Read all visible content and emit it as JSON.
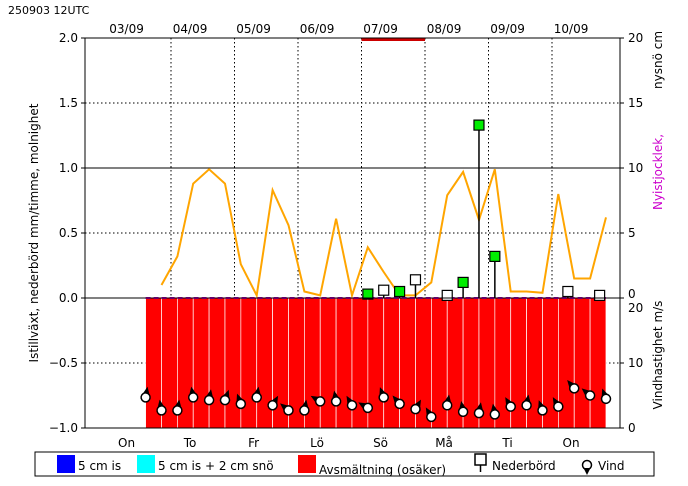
{
  "header": {
    "run_label": "250903 12UTC"
  },
  "chart_data": {
    "type": "composite",
    "top_dates": [
      "03/09",
      "04/09",
      "05/09",
      "06/09",
      "07/09",
      "08/09",
      "09/09",
      "10/09"
    ],
    "days": [
      "On",
      "To",
      "Fr",
      "Lö",
      "Sö",
      "Må",
      "Ti",
      "On"
    ],
    "ylabel_left": "Istillväxt, nederbörd mm/timme, molnighet",
    "ylim_left": [
      -1.0,
      2.0
    ],
    "yticks_left": [
      "−1.0",
      "−0.5",
      "0.0",
      "0.5",
      "1.0",
      "1.5",
      "2.0"
    ],
    "ylabel_right_top_1": "nysnö cm",
    "ylabel_right_top_2": "Nyistjocklek,",
    "yticks_right_top": [
      "0",
      "5",
      "10",
      "15",
      "20"
    ],
    "ylabel_right_bottom": "Vindhastighet m/s",
    "yticks_right_bottom": [
      "0",
      "10",
      "20"
    ],
    "cloudiness": {
      "color": "#ffa500",
      "x": [
        0.85,
        1.1,
        1.35,
        1.6,
        1.85,
        2.1,
        2.35,
        2.6,
        2.85,
        3.1,
        3.35,
        3.6,
        3.85,
        4.1,
        4.35,
        4.6,
        4.85,
        5.1,
        5.35,
        5.6,
        5.85,
        6.1,
        6.35,
        6.6,
        6.85,
        7.1,
        7.35,
        7.6,
        7.85
      ],
      "y": [
        0.1,
        0.32,
        0.88,
        0.99,
        0.88,
        0.26,
        0.02,
        0.83,
        0.56,
        0.05,
        0.02,
        0.61,
        0.02,
        0.39,
        0.2,
        0.02,
        0.02,
        0.12,
        0.79,
        0.97,
        0.6,
        0.99,
        0.05,
        0.05,
        0.04,
        0.8,
        0.15,
        0.15,
        0.62
      ]
    },
    "precipitation": {
      "x": [
        4.1,
        4.35,
        4.6,
        4.85,
        5.35,
        5.6,
        5.85,
        6.1,
        7.25,
        7.75
      ],
      "y": [
        0.03,
        0.06,
        0.05,
        0.14,
        0.02,
        0.12,
        1.33,
        0.32,
        0.05,
        0.02
      ],
      "fill": [
        "#00ee00",
        "#ffffff",
        "#00ee00",
        "#ffffff",
        "#ffffff",
        "#00ee00",
        "#00ee00",
        "#00ee00",
        "#ffffff",
        "#ffffff"
      ]
    },
    "melt": {
      "color": "#ff0000",
      "x_start": 0.6,
      "x_end": 7.85,
      "y_bottom": -1.0
    },
    "top_marker": {
      "color": "#cc0000",
      "x_start": 4.0,
      "x_end": 5.0
    },
    "wind": {
      "x": [
        0.6,
        0.85,
        1.1,
        1.35,
        1.6,
        1.85,
        2.1,
        2.35,
        2.6,
        2.85,
        3.1,
        3.35,
        3.6,
        3.85,
        4.1,
        4.35,
        4.6,
        4.85,
        5.1,
        5.35,
        5.6,
        5.85,
        6.1,
        6.35,
        6.6,
        6.85,
        7.1,
        7.35,
        7.6,
        7.85
      ],
      "speed": [
        4.7,
        2.7,
        2.7,
        4.7,
        4.3,
        4.3,
        3.7,
        4.7,
        3.5,
        2.7,
        2.7,
        4.1,
        4.1,
        3.5,
        3.1,
        4.7,
        3.7,
        2.9,
        1.7,
        3.5,
        2.5,
        2.3,
        2.1,
        3.3,
        3.5,
        2.7,
        3.3,
        6.1,
        5.0,
        4.5
      ],
      "direction_deg": [
        10,
        350,
        10,
        350,
        10,
        20,
        340,
        10,
        30,
        310,
        10,
        300,
        350,
        330,
        300,
        340,
        320,
        30,
        330,
        10,
        350,
        10,
        350,
        330,
        10,
        340,
        330,
        320,
        310,
        340
      ]
    },
    "legend": {
      "items": [
        {
          "label": "5 cm is",
          "color": "#0000ff"
        },
        {
          "label": "5 cm is + 2 cm snö",
          "color": "#00ffff"
        },
        {
          "label": "Avsmältning (osäker)",
          "color": "#ff0000"
        }
      ],
      "precip_label": "Nederbörd",
      "wind_label": "Vind"
    }
  }
}
